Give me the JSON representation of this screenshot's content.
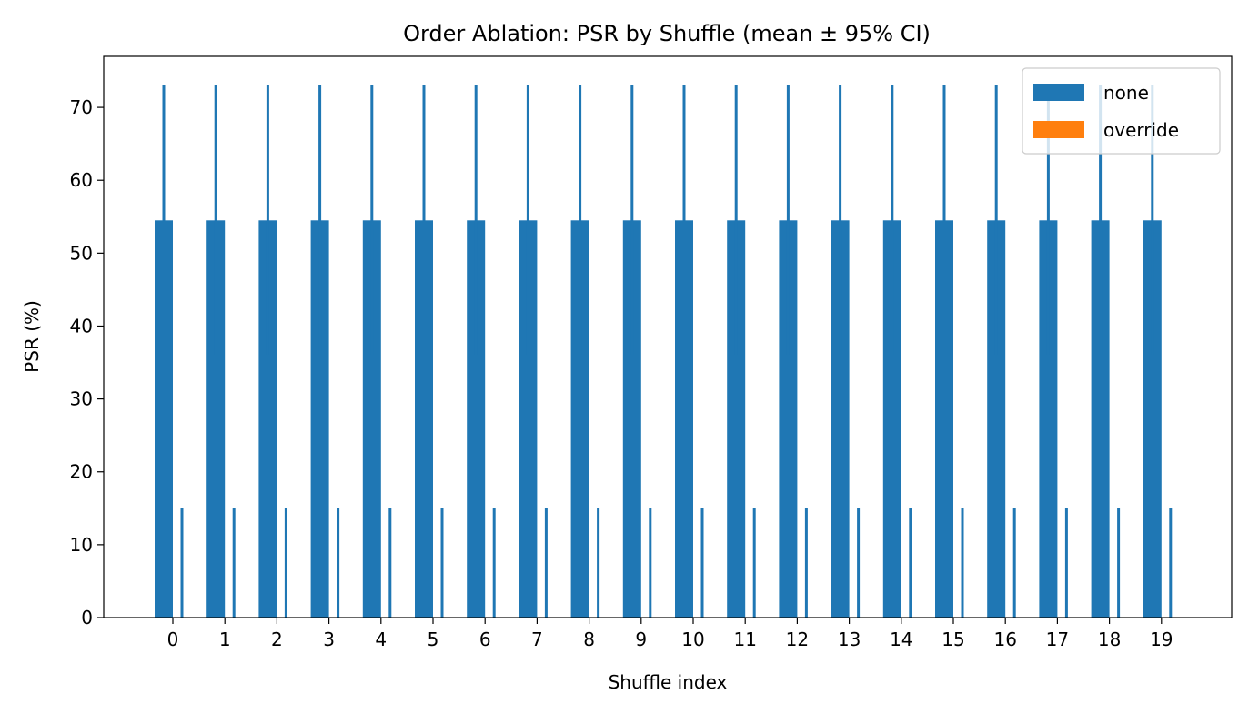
{
  "chart_data": {
    "type": "bar",
    "title": "Order Ablation: PSR by Shuffle (mean ± 95% CI)",
    "xlabel": "Shuffle index",
    "ylabel": "PSR (%)",
    "categories": [
      "0",
      "1",
      "2",
      "3",
      "4",
      "5",
      "6",
      "7",
      "8",
      "9",
      "10",
      "11",
      "12",
      "13",
      "14",
      "15",
      "16",
      "17",
      "18",
      "19"
    ],
    "series": [
      {
        "name": "none",
        "color": "#1f77b4",
        "values": [
          54.5,
          54.5,
          54.5,
          54.5,
          54.5,
          54.5,
          54.5,
          54.5,
          54.5,
          54.5,
          54.5,
          54.5,
          54.5,
          54.5,
          54.5,
          54.5,
          54.5,
          54.5,
          54.5,
          54.5
        ],
        "ci_upper": [
          73,
          73,
          73,
          73,
          73,
          73,
          73,
          73,
          73,
          73,
          73,
          73,
          73,
          73,
          73,
          73,
          73,
          73,
          73,
          73
        ],
        "ci_lower": [
          36,
          36,
          36,
          36,
          36,
          36,
          36,
          36,
          36,
          36,
          36,
          36,
          36,
          36,
          36,
          36,
          36,
          36,
          36,
          36
        ]
      },
      {
        "name": "override",
        "color": "#ff7f0e",
        "values": [
          0,
          0,
          0,
          0,
          0,
          0,
          0,
          0,
          0,
          0,
          0,
          0,
          0,
          0,
          0,
          0,
          0,
          0,
          0,
          0
        ],
        "ci_upper": [
          15,
          15,
          15,
          15,
          15,
          15,
          15,
          15,
          15,
          15,
          15,
          15,
          15,
          15,
          15,
          15,
          15,
          15,
          15,
          15
        ],
        "ci_lower": [
          0,
          0,
          0,
          0,
          0,
          0,
          0,
          0,
          0,
          0,
          0,
          0,
          0,
          0,
          0,
          0,
          0,
          0,
          0,
          0
        ]
      }
    ],
    "ylim": [
      0,
      77
    ],
    "yticks": [
      0,
      10,
      20,
      30,
      40,
      50,
      60,
      70
    ],
    "grid": false,
    "legend_position": "top-right"
  }
}
